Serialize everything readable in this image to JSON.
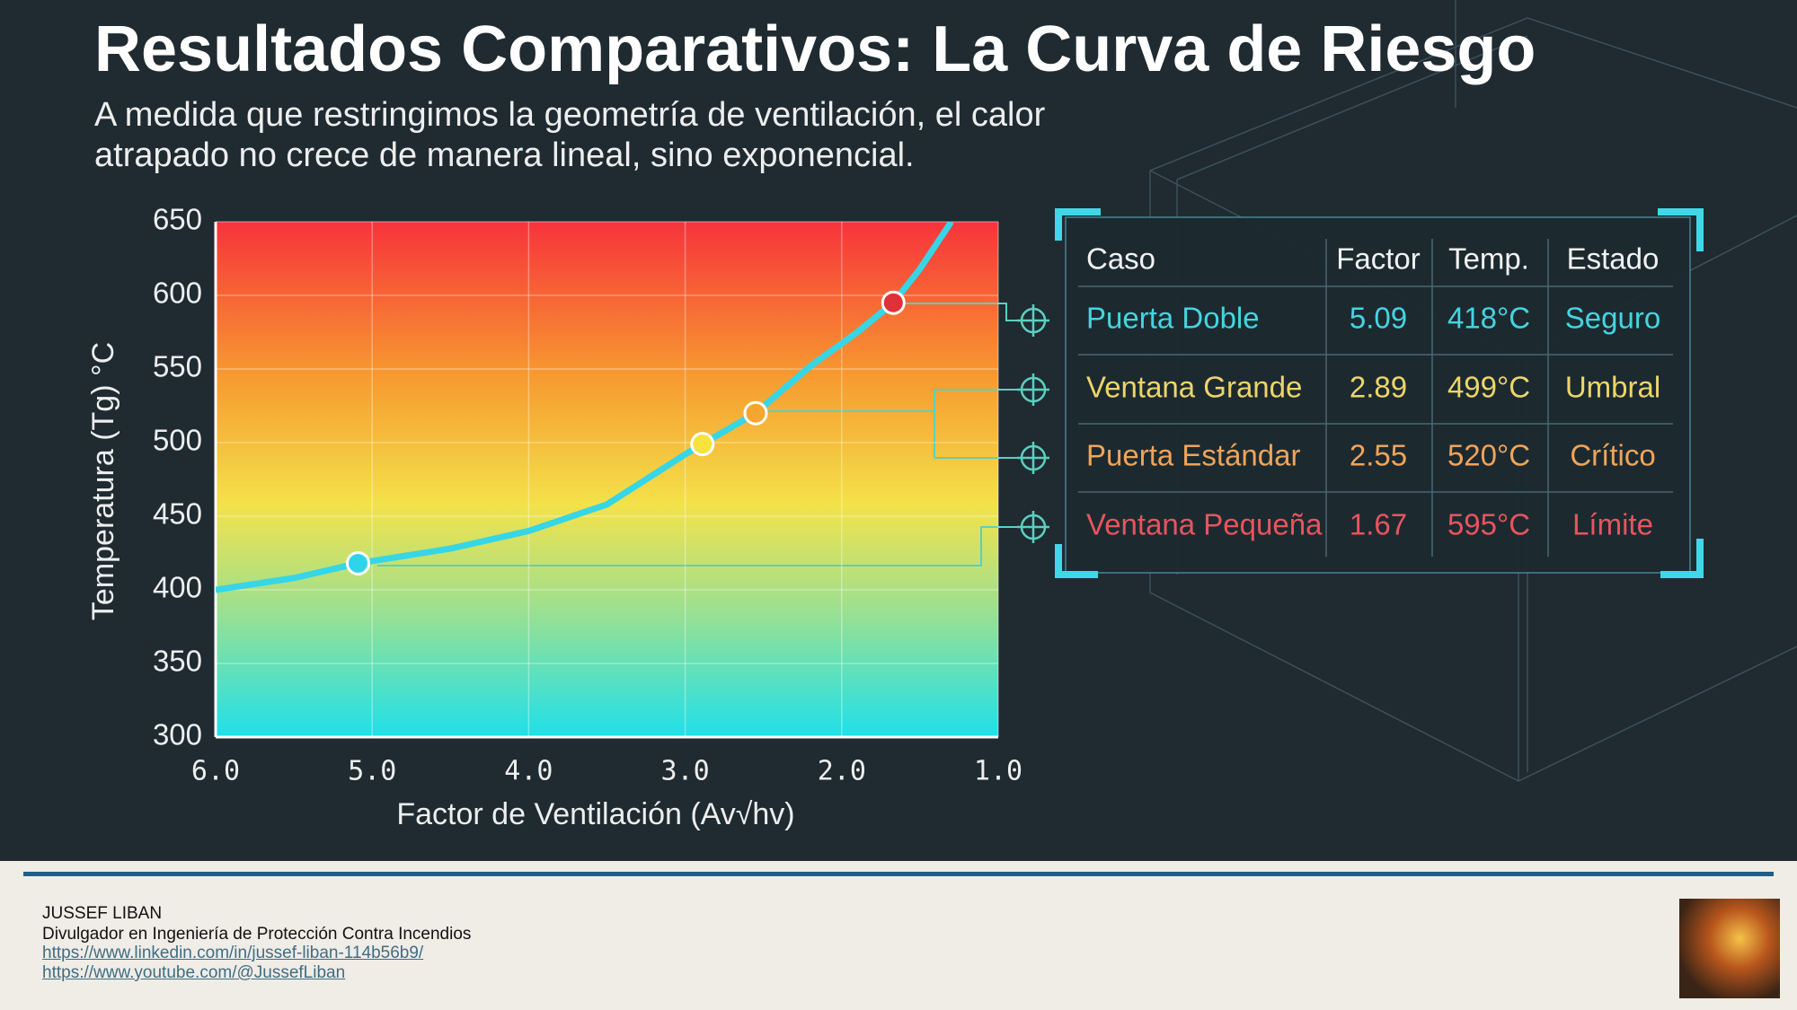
{
  "header": {
    "title": "Resultados Comparativos: La Curva de Riesgo",
    "subtitle": [
      "A medida que restringimos la geometría de ventilación, el calor",
      "atrapado no crece de manera lineal, sino exponencial."
    ]
  },
  "chart_data": {
    "type": "line",
    "x_label": "Factor de Ventilación (Av√hv)",
    "y_label": "Temperatura (Tg) °C",
    "xlim": [
      6,
      1
    ],
    "ylim": [
      300,
      650
    ],
    "xticks": [
      {
        "value": 6,
        "label": "6.0"
      },
      {
        "value": 5,
        "label": "5.0"
      },
      {
        "value": 4,
        "label": "4.0"
      },
      {
        "value": 3,
        "label": "3.0"
      },
      {
        "value": 2,
        "label": "2.0"
      },
      {
        "value": 1,
        "label": "1.0"
      }
    ],
    "yticks": [
      300,
      350,
      400,
      450,
      500,
      550,
      600,
      650
    ],
    "grid": true,
    "series": [
      {
        "x": [
          6,
          5.5,
          5.09,
          4.5,
          4,
          3.5,
          3,
          2.89,
          2.55,
          2.2,
          1.9,
          1.67,
          1.5,
          1.3
        ],
        "values": [
          400,
          408,
          418,
          428,
          440,
          458,
          492,
          499,
          520,
          552,
          575,
          595,
          618,
          650
        ],
        "color": "#36d6e6"
      }
    ],
    "points": {
      "x": [
        5.09,
        2.89,
        2.55,
        1.67
      ],
      "values": [
        418,
        499,
        520,
        595
      ],
      "colors": [
        "#2fd3ea",
        "#f7e23e",
        "#f5a630",
        "#e0303a"
      ]
    }
  },
  "table": {
    "header": [
      "Caso",
      "Factor",
      "Temp.",
      "Estado"
    ],
    "rows": [
      [
        "Puerta Doble",
        "5.09",
        "418°C",
        "Seguro"
      ],
      [
        "Ventana Grande",
        "2.89",
        "499°C",
        "Umbral"
      ],
      [
        "Puerta Estándar",
        "2.55",
        "520°C",
        "Crítico"
      ],
      [
        "Ventana Pequeña",
        "1.67",
        "595°C",
        "Límite"
      ]
    ],
    "row_colors": [
      "#45d4e2",
      "#eed56a",
      "#f0a45a",
      "#e8545e"
    ]
  },
  "footer": {
    "name": "JUSSEF LIBAN",
    "role": "Divulgador en Ingeniería de Protección Contra Incendios",
    "links": [
      "https://www.linkedin.com/in/jussef-liban-114b56b9/",
      "https://www.youtube.com/@JussefLiban"
    ]
  }
}
